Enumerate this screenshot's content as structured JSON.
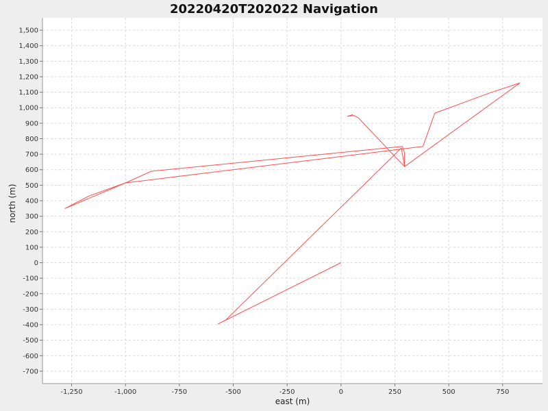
{
  "chart_data": {
    "type": "line",
    "title": "20220420T202022 Navigation",
    "xlabel": "east (m)",
    "ylabel": "north (m)",
    "xlim": [
      -1385,
      935
    ],
    "ylim": [
      -780,
      1580
    ],
    "xticks": [
      -1250,
      -1000,
      -750,
      -500,
      -250,
      0,
      250,
      500,
      750
    ],
    "yticks": [
      -700,
      -600,
      -500,
      -400,
      -300,
      -200,
      -100,
      0,
      100,
      200,
      300,
      400,
      500,
      600,
      700,
      800,
      900,
      1000,
      1100,
      1200,
      1300,
      1400,
      1500
    ],
    "grid": true,
    "legend": "none",
    "colors": {
      "line": "#ff4d4d",
      "plot_bg": "#ffffff",
      "grid": "#d8d8d8",
      "page_bg": "#eeeeee"
    },
    "series": [
      {
        "x": [
          0,
          -520,
          -570,
          -535,
          280,
          295,
          295,
          285,
          -880,
          -1000,
          -1170,
          -1280,
          -1000,
          380,
          435,
          690,
          830,
          295,
          80,
          60,
          30,
          55
        ],
        "y": [
          0,
          -360,
          -395,
          -370,
          740,
          620,
          710,
          750,
          590,
          515,
          430,
          350,
          515,
          750,
          965,
          1095,
          1160,
          620,
          935,
          950,
          945,
          955
        ]
      }
    ]
  }
}
